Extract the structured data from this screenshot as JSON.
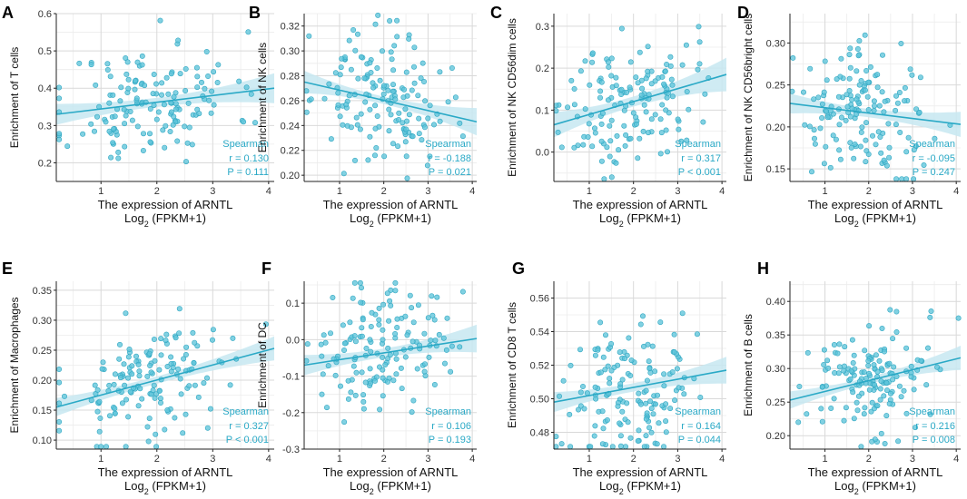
{
  "colors": {
    "accent": "#2aa9c6",
    "point": "#5dc4da",
    "point_stroke": "#2ea6c1",
    "band": "#c7e8f1",
    "grid": "#d9d9d9"
  },
  "chart_data": [
    {
      "type": "scatter",
      "panel_letter": "A",
      "ylabel": "Enrichment of T cells",
      "xlabel": "The expression of ARNTL",
      "xlabel2": "Log",
      "xlabel2_sub": "2",
      "xlabel2_tail": " (FPKM+1)",
      "xlim": [
        0.2,
        4.1
      ],
      "ylim": [
        0.15,
        0.6
      ],
      "xticks": [
        1,
        2,
        3,
        4
      ],
      "yticks": [
        0.2,
        0.3,
        0.4,
        0.5,
        0.6
      ],
      "ytick_labels": [
        "0.2",
        "0.3",
        "0.4",
        "0.5",
        "0.6"
      ],
      "fit": {
        "x": [
          0.2,
          4.1
        ],
        "y": [
          0.33,
          0.4
        ]
      },
      "band_width": [
        0.028,
        0.012,
        0.04
      ],
      "stats": {
        "method": "Spearman",
        "r": "r = 0.130",
        "p": "P = 0.111"
      },
      "n_points": 150,
      "seed": 11,
      "noise": 0.08
    },
    {
      "type": "scatter",
      "panel_letter": "B",
      "ylabel": "Enrichment of NK cells",
      "xlabel": "The expression of ARNTL",
      "xlabel2": "Log",
      "xlabel2_sub": "2",
      "xlabel2_tail": " (FPKM+1)",
      "xlim": [
        0.2,
        4.1
      ],
      "ylim": [
        0.195,
        0.33
      ],
      "xticks": [
        1,
        2,
        3,
        4
      ],
      "yticks": [
        0.2,
        0.22,
        0.24,
        0.26,
        0.28,
        0.3,
        0.32
      ],
      "ytick_labels": [
        "0.20",
        "0.22",
        "0.24",
        "0.26",
        "0.28",
        "0.30",
        "0.32"
      ],
      "fit": {
        "x": [
          0.2,
          4.1
        ],
        "y": [
          0.275,
          0.243
        ]
      },
      "band_width": [
        0.009,
        0.003,
        0.011
      ],
      "stats": {
        "method": "Spearman",
        "r": "r = -0.188",
        "p": "P = 0.021"
      },
      "n_points": 150,
      "seed": 23,
      "noise": 0.026
    },
    {
      "type": "scatter",
      "panel_letter": "C",
      "ylabel": "Enrichment of NK CD56dim cells",
      "xlabel": "The expression of ARNTL",
      "xlabel2": "Log",
      "xlabel2_sub": "2",
      "xlabel2_tail": " (FPKM+1)",
      "xlim": [
        0.2,
        4.1
      ],
      "ylim": [
        -0.07,
        0.33
      ],
      "xticks": [
        1,
        2,
        3,
        4
      ],
      "yticks": [
        0.0,
        0.1,
        0.2,
        0.3
      ],
      "ytick_labels": [
        "0.0",
        "0.1",
        "0.2",
        "0.3"
      ],
      "fit": {
        "x": [
          0.2,
          4.1
        ],
        "y": [
          0.065,
          0.185
        ]
      },
      "band_width": [
        0.03,
        0.012,
        0.04
      ],
      "stats": {
        "method": "Spearman",
        "r": "r = 0.317",
        "p": "P < 0.001"
      },
      "n_points": 150,
      "seed": 37,
      "noise": 0.075
    },
    {
      "type": "scatter",
      "panel_letter": "D",
      "ylabel": "Enrichment of NK CD56bright cells",
      "xlabel": "The expression of ARNTL",
      "xlabel2": "Log",
      "xlabel2_sub": "2",
      "xlabel2_tail": " (FPKM+1)",
      "xlim": [
        0.2,
        4.1
      ],
      "ylim": [
        0.135,
        0.335
      ],
      "xticks": [
        1,
        2,
        3,
        4
      ],
      "yticks": [
        0.15,
        0.2,
        0.25,
        0.3
      ],
      "ytick_labels": [
        "0.15",
        "0.20",
        "0.25",
        "0.30"
      ],
      "fit": {
        "x": [
          0.2,
          4.1
        ],
        "y": [
          0.228,
          0.203
        ]
      },
      "band_width": [
        0.012,
        0.005,
        0.015
      ],
      "stats": {
        "method": "Spearman",
        "r": "r = -0.095",
        "p": "P = 0.247"
      },
      "n_points": 150,
      "seed": 41,
      "noise": 0.038
    },
    {
      "type": "scatter",
      "panel_letter": "E",
      "ylabel": "Enrichment of Macrophages",
      "xlabel": "The expression of ARNTL",
      "xlabel2": "Log",
      "xlabel2_sub": "2",
      "xlabel2_tail": " (FPKM+1)",
      "xlim": [
        0.2,
        4.1
      ],
      "ylim": [
        0.085,
        0.365
      ],
      "xticks": [
        1,
        2,
        3,
        4
      ],
      "yticks": [
        0.1,
        0.15,
        0.2,
        0.25,
        0.3,
        0.35
      ],
      "ytick_labels": [
        "0.10",
        "0.15",
        "0.20",
        "0.25",
        "0.30",
        "0.35"
      ],
      "fit": {
        "x": [
          0.2,
          4.1
        ],
        "y": [
          0.155,
          0.253
        ]
      },
      "band_width": [
        0.015,
        0.006,
        0.02
      ],
      "stats": {
        "method": "Spearman",
        "r": "r = 0.327",
        "p": "P < 0.001"
      },
      "n_points": 150,
      "seed": 53,
      "noise": 0.05
    },
    {
      "type": "scatter",
      "panel_letter": "F",
      "ylabel": "Enrichment of DC",
      "xlabel": "The expression of ARNTL",
      "xlabel2": "Log",
      "xlabel2_sub": "2",
      "xlabel2_tail": " (FPKM+1)",
      "xlim": [
        0.2,
        4.1
      ],
      "ylim": [
        -0.3,
        0.16
      ],
      "xticks": [
        1,
        2,
        3,
        4
      ],
      "yticks": [
        -0.3,
        -0.2,
        -0.1,
        0.0,
        0.1
      ],
      "ytick_labels": [
        "-0.3",
        "-0.2",
        "-0.1",
        "0.0",
        "0.1"
      ],
      "fit": {
        "x": [
          0.2,
          4.1
        ],
        "y": [
          -0.07,
          0.003
        ]
      },
      "band_width": [
        0.028,
        0.012,
        0.038
      ],
      "stats": {
        "method": "Spearman",
        "r": "r = 0.106",
        "p": "P = 0.193"
      },
      "n_points": 150,
      "seed": 67,
      "noise": 0.085
    },
    {
      "type": "scatter",
      "panel_letter": "G",
      "ylabel": "Enrichment of CD8 T cells",
      "xlabel": "The expression of ARNTL",
      "xlabel2": "Log",
      "xlabel2_sub": "2",
      "xlabel2_tail": " (FPKM+1)",
      "xlim": [
        0.2,
        4.1
      ],
      "ylim": [
        0.47,
        0.57
      ],
      "xticks": [
        1,
        2,
        3,
        4
      ],
      "yticks": [
        0.48,
        0.5,
        0.52,
        0.54,
        0.56
      ],
      "ytick_labels": [
        "0.48",
        "0.50",
        "0.52",
        "0.54",
        "0.56"
      ],
      "fit": {
        "x": [
          0.2,
          4.1
        ],
        "y": [
          0.498,
          0.517
        ]
      },
      "band_width": [
        0.006,
        0.0025,
        0.008
      ],
      "stats": {
        "method": "Spearman",
        "r": "r = 0.164",
        "p": "P = 0.044"
      },
      "n_points": 150,
      "seed": 79,
      "noise": 0.02
    },
    {
      "type": "scatter",
      "panel_letter": "H",
      "ylabel": "Enrichment of B cells",
      "xlabel": "The expression of ARNTL",
      "xlabel2": "Log",
      "xlabel2_sub": "2",
      "xlabel2_tail": " (FPKM+1)",
      "xlim": [
        0.2,
        4.1
      ],
      "ylim": [
        0.18,
        0.43
      ],
      "xticks": [
        1,
        2,
        3,
        4
      ],
      "yticks": [
        0.2,
        0.25,
        0.3,
        0.35,
        0.4
      ],
      "ytick_labels": [
        "0.20",
        "0.25",
        "0.30",
        "0.35",
        "0.40"
      ],
      "fit": {
        "x": [
          0.2,
          4.1
        ],
        "y": [
          0.253,
          0.316
        ]
      },
      "band_width": [
        0.013,
        0.005,
        0.018
      ],
      "stats": {
        "method": "Spearman",
        "r": "r = 0.216",
        "p": "P = 0.008"
      },
      "n_points": 150,
      "seed": 97,
      "noise": 0.045
    }
  ]
}
